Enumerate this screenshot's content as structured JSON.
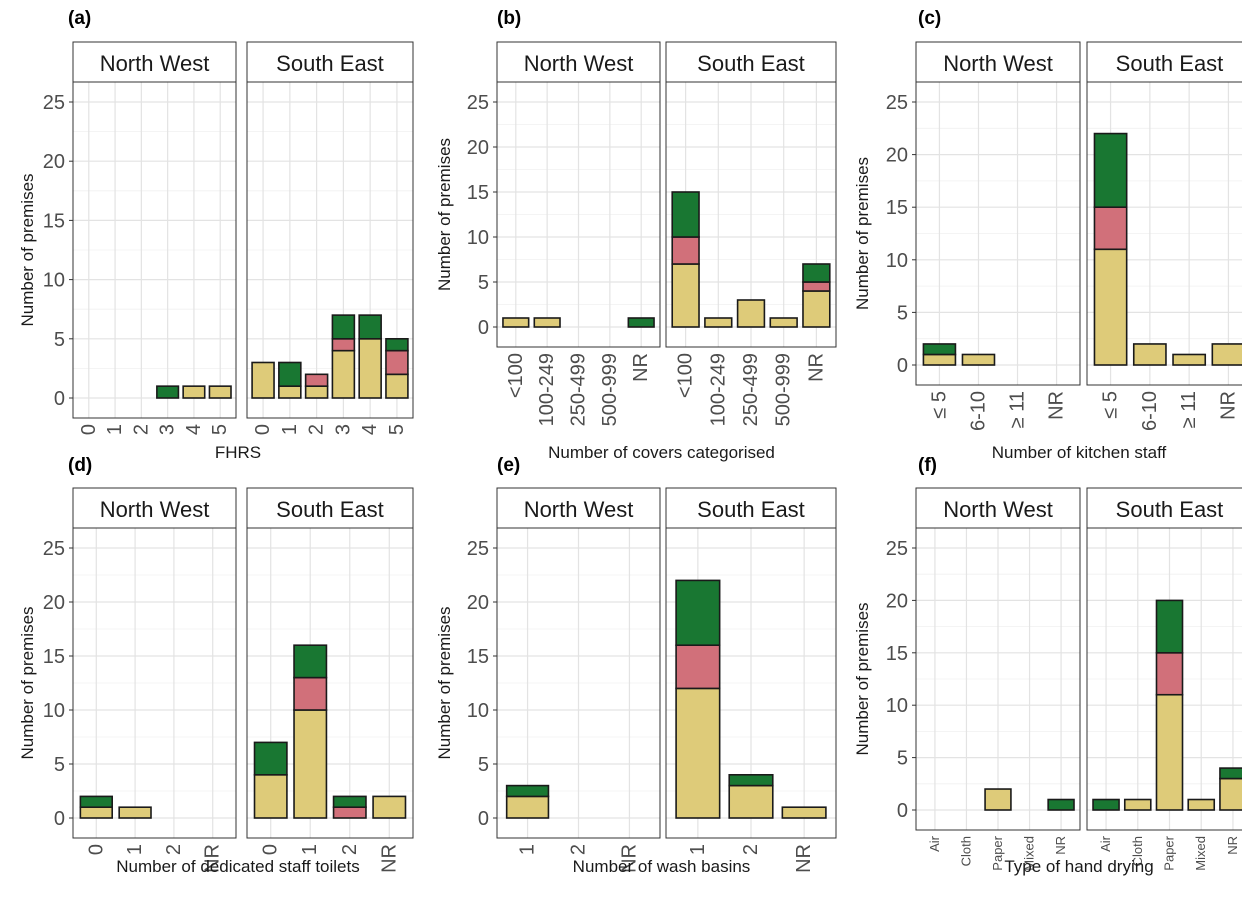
{
  "colors": {
    "compliant": "#197732",
    "partial": "#d1707a",
    "noncompliant": "#decb79"
  },
  "facets": [
    "North West",
    "South East"
  ],
  "chart_data": [
    {
      "type": "bar",
      "stacked": true,
      "tag": "(a)",
      "xlabel": "FHRS",
      "ylabel": "Number of premises",
      "ylim": [
        0,
        25
      ],
      "yticks": [
        0,
        5,
        10,
        15,
        20,
        25
      ],
      "categories": [
        "0",
        "1",
        "2",
        "3",
        "4",
        "5"
      ],
      "panels": [
        {
          "facet": "North West",
          "series": [
            {
              "key": "noncompliant",
              "values": [
                0,
                0,
                0,
                0,
                1,
                1
              ]
            },
            {
              "key": "partial",
              "values": [
                0,
                0,
                0,
                0,
                0,
                0
              ]
            },
            {
              "key": "compliant",
              "values": [
                0,
                0,
                0,
                1,
                0,
                0
              ]
            }
          ]
        },
        {
          "facet": "South East",
          "series": [
            {
              "key": "noncompliant",
              "values": [
                3,
                1,
                1,
                4,
                5,
                2
              ]
            },
            {
              "key": "partial",
              "values": [
                0,
                0,
                1,
                1,
                0,
                2
              ]
            },
            {
              "key": "compliant",
              "values": [
                0,
                2,
                0,
                2,
                2,
                1
              ]
            }
          ]
        }
      ]
    },
    {
      "type": "bar",
      "stacked": true,
      "tag": "(b)",
      "xlabel": "Number of covers categorised",
      "ylabel": "Number of premises",
      "ylim": [
        0,
        25
      ],
      "yticks": [
        0,
        5,
        10,
        15,
        20,
        25
      ],
      "categories": [
        "<100",
        "100-249",
        "250-499",
        "500-999",
        "NR"
      ],
      "panels": [
        {
          "facet": "North West",
          "series": [
            {
              "key": "noncompliant",
              "values": [
                1,
                1,
                0,
                0,
                0
              ]
            },
            {
              "key": "partial",
              "values": [
                0,
                0,
                0,
                0,
                0
              ]
            },
            {
              "key": "compliant",
              "values": [
                0,
                0,
                0,
                0,
                1
              ]
            }
          ]
        },
        {
          "facet": "South East",
          "series": [
            {
              "key": "noncompliant",
              "values": [
                7,
                1,
                3,
                1,
                4
              ]
            },
            {
              "key": "partial",
              "values": [
                3,
                0,
                0,
                0,
                1
              ]
            },
            {
              "key": "compliant",
              "values": [
                5,
                0,
                0,
                0,
                2
              ]
            }
          ]
        }
      ]
    },
    {
      "type": "bar",
      "stacked": true,
      "tag": "(c)",
      "xlabel": "Number of kitchen staff",
      "ylabel": "Number of premises",
      "ylim": [
        0,
        25
      ],
      "yticks": [
        0,
        5,
        10,
        15,
        20,
        25
      ],
      "categories": [
        "≤ 5",
        "6-10",
        "≥ 11",
        "NR"
      ],
      "panels": [
        {
          "facet": "North West",
          "series": [
            {
              "key": "noncompliant",
              "values": [
                1,
                1,
                0,
                0
              ]
            },
            {
              "key": "partial",
              "values": [
                0,
                0,
                0,
                0
              ]
            },
            {
              "key": "compliant",
              "values": [
                1,
                0,
                0,
                0
              ]
            }
          ]
        },
        {
          "facet": "South East",
          "series": [
            {
              "key": "noncompliant",
              "values": [
                11,
                2,
                1,
                2
              ]
            },
            {
              "key": "partial",
              "values": [
                4,
                0,
                0,
                0
              ]
            },
            {
              "key": "compliant",
              "values": [
                7,
                0,
                0,
                0
              ]
            }
          ]
        }
      ]
    },
    {
      "type": "bar",
      "stacked": true,
      "tag": "(d)",
      "xlabel": "Number of dedicated staff toilets",
      "ylabel": "Number of premises",
      "ylim": [
        0,
        25
      ],
      "yticks": [
        0,
        5,
        10,
        15,
        20,
        25
      ],
      "categories": [
        "0",
        "1",
        "2",
        "NR"
      ],
      "panels": [
        {
          "facet": "North West",
          "series": [
            {
              "key": "noncompliant",
              "values": [
                1,
                1,
                0,
                0
              ]
            },
            {
              "key": "partial",
              "values": [
                0,
                0,
                0,
                0
              ]
            },
            {
              "key": "compliant",
              "values": [
                1,
                0,
                0,
                0
              ]
            }
          ]
        },
        {
          "facet": "South East",
          "series": [
            {
              "key": "noncompliant",
              "values": [
                4,
                10,
                0,
                2
              ]
            },
            {
              "key": "partial",
              "values": [
                0,
                3,
                1,
                0
              ]
            },
            {
              "key": "compliant",
              "values": [
                3,
                3,
                1,
                0
              ]
            }
          ]
        }
      ]
    },
    {
      "type": "bar",
      "stacked": true,
      "tag": "(e)",
      "xlabel": "Number of wash basins",
      "ylabel": "Number of premises",
      "ylim": [
        0,
        25
      ],
      "yticks": [
        0,
        5,
        10,
        15,
        20,
        25
      ],
      "categories": [
        "1",
        "2",
        "NR"
      ],
      "panels": [
        {
          "facet": "North West",
          "series": [
            {
              "key": "noncompliant",
              "values": [
                2,
                0,
                0
              ]
            },
            {
              "key": "partial",
              "values": [
                0,
                0,
                0
              ]
            },
            {
              "key": "compliant",
              "values": [
                1,
                0,
                0
              ]
            }
          ]
        },
        {
          "facet": "South East",
          "series": [
            {
              "key": "noncompliant",
              "values": [
                12,
                3,
                1
              ]
            },
            {
              "key": "partial",
              "values": [
                4,
                0,
                0
              ]
            },
            {
              "key": "compliant",
              "values": [
                6,
                1,
                0
              ]
            }
          ]
        }
      ]
    },
    {
      "type": "bar",
      "stacked": true,
      "tag": "(f)",
      "xlabel": "Type of hand drying",
      "ylabel": "Number of premises",
      "ylim": [
        0,
        25
      ],
      "yticks": [
        0,
        5,
        10,
        15,
        20,
        25
      ],
      "categories": [
        "Air",
        "Cloth",
        "Paper",
        "Mixed",
        "NR"
      ],
      "panels": [
        {
          "facet": "North West",
          "series": [
            {
              "key": "noncompliant",
              "values": [
                0,
                0,
                2,
                0,
                0
              ]
            },
            {
              "key": "partial",
              "values": [
                0,
                0,
                0,
                0,
                0
              ]
            },
            {
              "key": "compliant",
              "values": [
                0,
                0,
                0,
                0,
                1
              ]
            }
          ]
        },
        {
          "facet": "South East",
          "series": [
            {
              "key": "noncompliant",
              "values": [
                0,
                1,
                11,
                1,
                3
              ]
            },
            {
              "key": "partial",
              "values": [
                0,
                0,
                4,
                0,
                0
              ]
            },
            {
              "key": "compliant",
              "values": [
                1,
                0,
                5,
                0,
                1
              ]
            }
          ]
        }
      ]
    }
  ]
}
